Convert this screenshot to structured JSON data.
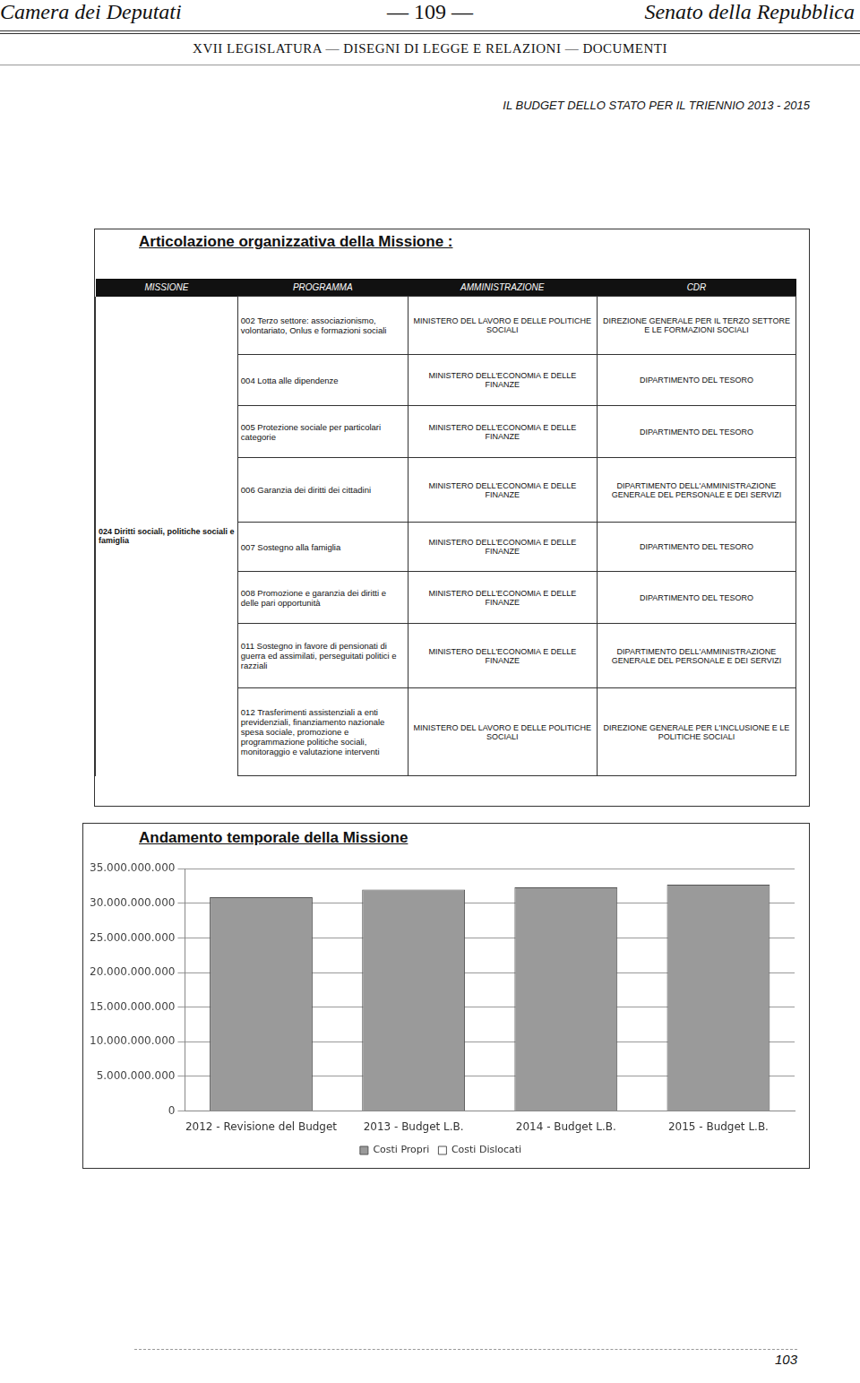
{
  "header": {
    "left": "Camera dei Deputati",
    "center": "— 109 —",
    "right": "Senato della Repubblica",
    "subheader": "XVII LEGISLATURA — DISEGNI DI LEGGE E RELAZIONI — DOCUMENTI",
    "budget_title": "IL BUDGET DELLO STATO PER IL TRIENNIO 2013 - 2015"
  },
  "table": {
    "title": "Articolazione organizzativa della Missione :",
    "columns": [
      "MISSIONE",
      "PROGRAMMA",
      "AMMINISTRAZIONE",
      "CDR"
    ],
    "mission": "024 Diritti sociali, politiche sociali e famiglia",
    "rows": [
      [
        "002 Terzo settore: associazionismo, volontariato, Onlus e formazioni sociali",
        "MINISTERO DEL LAVORO E DELLE POLITICHE SOCIALI",
        "DIREZIONE GENERALE PER IL TERZO SETTORE E LE FORMAZIONI SOCIALI"
      ],
      [
        "004 Lotta alle dipendenze",
        "MINISTERO DELL'ECONOMIA E DELLE FINANZE",
        "DIPARTIMENTO DEL TESORO"
      ],
      [
        "005 Protezione sociale per particolari categorie",
        "MINISTERO DELL'ECONOMIA E DELLE FINANZE",
        "DIPARTIMENTO DEL TESORO"
      ],
      [
        "006 Garanzia dei diritti dei cittadini",
        "MINISTERO DELL'ECONOMIA E DELLE FINANZE",
        "DIPARTIMENTO DELL'AMMINISTRAZIONE GENERALE DEL PERSONALE E DEI SERVIZI"
      ],
      [
        "007 Sostegno alla famiglia",
        "MINISTERO DELL'ECONOMIA E DELLE FINANZE",
        "DIPARTIMENTO DEL TESORO"
      ],
      [
        "008 Promozione e garanzia dei diritti e delle pari opportunità",
        "MINISTERO DELL'ECONOMIA E DELLE FINANZE",
        "DIPARTIMENTO DEL TESORO"
      ],
      [
        "011 Sostegno in favore di pensionati di guerra ed assimilati, perseguitati politici e razziali",
        "MINISTERO DELL'ECONOMIA E DELLE FINANZE",
        "DIPARTIMENTO DELL'AMMINISTRAZIONE GENERALE DEL PERSONALE E DEI SERVIZI"
      ],
      [
        "012 Trasferimenti assistenziali a enti previdenziali, finanziamento nazionale spesa sociale, promozione e programmazione politiche sociali, monitoraggio e valutazione interventi",
        "MINISTERO DEL LAVORO E DELLE POLITICHE SOCIALI",
        "DIREZIONE GENERALE PER L'INCLUSIONE E LE POLITICHE SOCIALI"
      ]
    ]
  },
  "chart_data": {
    "type": "bar",
    "title": "Andamento temporale della Missione",
    "categories": [
      "2012 - Revisione del Budget",
      "2013 - Budget L.B.",
      "2014 - Budget L.B.",
      "2015 - Budget L.B."
    ],
    "series": [
      {
        "name": "Costi Propri",
        "color": "#9a9a9a",
        "values": [
          30900000000,
          32000000000,
          32300000000,
          32700000000
        ]
      },
      {
        "name": "Costi Dislocati",
        "color": "#ffffff",
        "values": [
          0,
          0,
          0,
          0
        ]
      }
    ],
    "stacked": true,
    "grid": true,
    "legend": "bottom",
    "ylim": [
      0,
      35000000000
    ],
    "yticks": [
      0,
      {
        "value": 5000000000,
        "label": "5.000.000.000"
      },
      {
        "value": 10000000000,
        "label": "10.000.000.000"
      },
      {
        "value": 15000000000,
        "label": "15.000.000.000"
      },
      {
        "value": 20000000000,
        "label": "20.000.000.000"
      },
      {
        "value": 25000000000,
        "label": "25.000.000.000"
      },
      {
        "value": 30000000000,
        "label": "30.000.000.000"
      },
      {
        "value": 35000000000,
        "label": "35.000.000.000"
      }
    ]
  },
  "footer": {
    "page_number": "103"
  }
}
